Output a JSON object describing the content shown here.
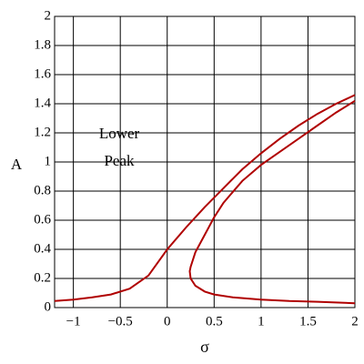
{
  "chart_data": {
    "type": "line",
    "xlabel": "σ",
    "ylabel": "A",
    "annotation": [
      "Lower",
      "Peak"
    ],
    "xlim": [
      -1.2,
      2
    ],
    "ylim": [
      0,
      2
    ],
    "xticks": [
      {
        "value": -1,
        "label": "−1"
      },
      {
        "value": -0.5,
        "label": "−0.5"
      },
      0,
      0.5,
      1,
      1.5,
      2
    ],
    "yticks": [
      0,
      0.2,
      0.4,
      0.6,
      0.8,
      1,
      1.2,
      1.4,
      1.6,
      1.8,
      2
    ],
    "grid": true,
    "series": [
      {
        "color": "#b00000",
        "x": [
          -1.2,
          -1,
          -0.8,
          -0.6,
          -0.4,
          -0.2,
          0,
          0.2,
          0.4,
          0.6,
          0.8,
          1,
          1.2,
          1.4,
          1.6,
          1.8,
          2
        ],
        "values": [
          0.045,
          0.055,
          0.07,
          0.09,
          0.13,
          0.22,
          0.4,
          0.55,
          0.69,
          0.82,
          0.95,
          1.06,
          1.16,
          1.25,
          1.33,
          1.4,
          1.46
        ]
      },
      {
        "color": "#b00000",
        "x": [
          2,
          1.8,
          1.6,
          1.4,
          1.2,
          1,
          0.8,
          0.6,
          0.5,
          0.4,
          0.3,
          0.25,
          0.24,
          0.25,
          0.3,
          0.4,
          0.5,
          0.7,
          1,
          1.3,
          1.6,
          2
        ],
        "values": [
          1.42,
          1.34,
          1.25,
          1.16,
          1.07,
          0.98,
          0.87,
          0.72,
          0.62,
          0.5,
          0.38,
          0.28,
          0.25,
          0.2,
          0.15,
          0.11,
          0.09,
          0.07,
          0.055,
          0.045,
          0.04,
          0.03
        ]
      }
    ]
  }
}
